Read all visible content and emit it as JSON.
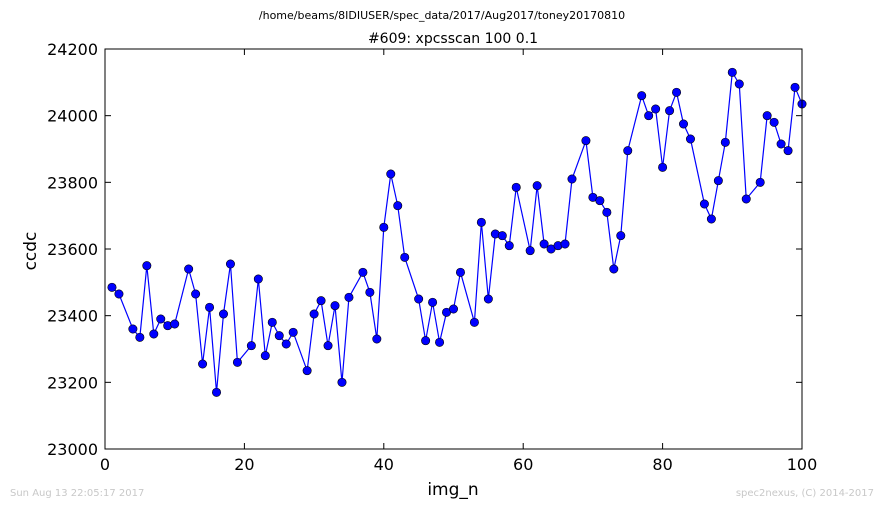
{
  "footer": {
    "timestamp": "Sun Aug 13 22:05:17 2017",
    "credit": "spec2nexus, (C) 2014-2017"
  },
  "chart_data": {
    "type": "line",
    "suptitle": "/home/beams/8IDIUSER/spec_data/2017/Aug2017/toney20170810",
    "title": "#609: xpcsscan 100 0.1",
    "xlabel": "img_n",
    "ylabel": "ccdc",
    "xlim": [
      0,
      100
    ],
    "ylim": [
      23000,
      24200
    ],
    "xticks": [
      0,
      20,
      40,
      60,
      80,
      100
    ],
    "yticks": [
      23000,
      23200,
      23400,
      23600,
      23800,
      24000,
      24200
    ],
    "grid": false,
    "line_color": "#0000ff",
    "marker": "circle",
    "series": [
      {
        "x": [
          1,
          2,
          4,
          5,
          6,
          7,
          8,
          9,
          10,
          12,
          13,
          14,
          15,
          16,
          17,
          18,
          19,
          21,
          22,
          23,
          24,
          25,
          26,
          27,
          29,
          30,
          31,
          32,
          33,
          34,
          35,
          37,
          38,
          39,
          40,
          41,
          42,
          43,
          45,
          46,
          47,
          48,
          49,
          50,
          51,
          53,
          54,
          55,
          56,
          57,
          58,
          59,
          61,
          62,
          63,
          64,
          65,
          66,
          67,
          69,
          70,
          71,
          72,
          73,
          74,
          75,
          77,
          78,
          79,
          80,
          81,
          82,
          83,
          84,
          86,
          87,
          88,
          89,
          90,
          91,
          92,
          94,
          95,
          96,
          97,
          98,
          99,
          100
        ],
        "y": [
          23485,
          23465,
          23360,
          23335,
          23550,
          23345,
          23390,
          23370,
          23375,
          23540,
          23465,
          23255,
          23425,
          23170,
          23405,
          23555,
          23260,
          23310,
          23510,
          23280,
          23380,
          23340,
          23315,
          23350,
          23235,
          23405,
          23445,
          23310,
          23430,
          23200,
          23455,
          23530,
          23470,
          23330,
          23665,
          23825,
          23730,
          23575,
          23450,
          23325,
          23440,
          23320,
          23410,
          23420,
          23530,
          23380,
          23680,
          23450,
          23645,
          23640,
          23610,
          23785,
          23595,
          23790,
          23615,
          23600,
          23610,
          23615,
          23810,
          23925,
          23755,
          23745,
          23710,
          23540,
          23640,
          23895,
          24060,
          24000,
          24020,
          23845,
          24015,
          24070,
          23975,
          23930,
          23735,
          23690,
          23805,
          23920,
          24130,
          24095,
          23750,
          23800,
          24000,
          23980,
          23915,
          23895,
          24085,
          24035
        ]
      }
    ]
  }
}
